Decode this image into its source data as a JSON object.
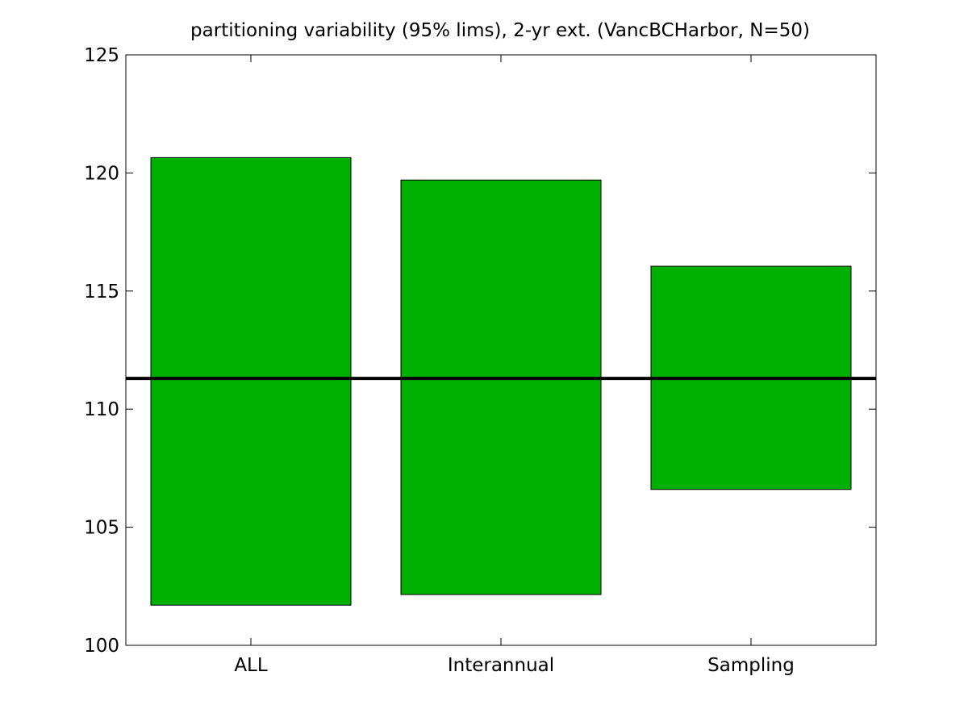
{
  "chart_data": {
    "type": "bar",
    "title": "partitioning variability (95% lims), 2-yr ext. (VancBCHarbor, N=50)",
    "xlabel": "",
    "ylabel": "",
    "categories": [
      "ALL",
      "Interannual",
      "Sampling"
    ],
    "ranges": [
      {
        "category": "ALL",
        "low": 101.7,
        "high": 120.65
      },
      {
        "category": "Interannual",
        "low": 102.15,
        "high": 119.7
      },
      {
        "category": "Sampling",
        "low": 106.6,
        "high": 116.05
      }
    ],
    "reference_line": {
      "value": 111.3
    },
    "ylim": [
      100,
      125
    ],
    "yticks": [
      100,
      105,
      110,
      115,
      120,
      125
    ],
    "grid": false,
    "legend": "none",
    "colors": {
      "bar_fill": "#00b000",
      "bar_edge": "#000000",
      "reference_line": "#000000",
      "axes": "#000000"
    }
  }
}
